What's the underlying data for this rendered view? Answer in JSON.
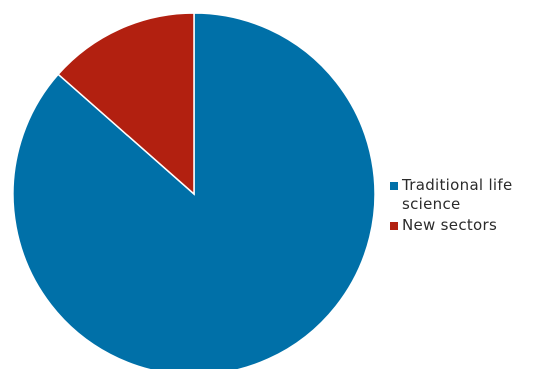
{
  "chart_data": {
    "type": "pie",
    "title": "",
    "legend_position": "right",
    "slices": [
      {
        "label": "Traditional life science",
        "value": 86.5,
        "color": "#0070A8"
      },
      {
        "label": "New sectors",
        "value": 13.5,
        "color": "#B22010"
      }
    ]
  }
}
